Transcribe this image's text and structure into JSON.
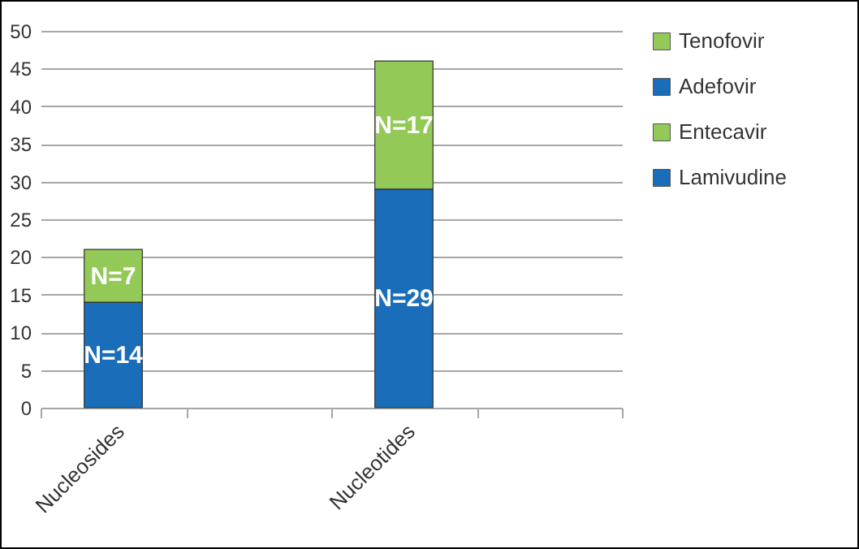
{
  "chart_data": {
    "type": "bar",
    "stacked": true,
    "categories": [
      "Nucleosides",
      null,
      "Nucleotides",
      null
    ],
    "series": [
      {
        "name": "Lamivudine",
        "color": "#1a6db8",
        "values": [
          14,
          null,
          null,
          null
        ],
        "value_labels": [
          "N=14",
          null,
          null,
          null
        ]
      },
      {
        "name": "Entecavir",
        "color": "#92c957",
        "values": [
          7,
          null,
          null,
          null
        ],
        "value_labels": [
          "N=7",
          null,
          null,
          null
        ]
      },
      {
        "name": "Adefovir",
        "color": "#1a6db8",
        "values": [
          null,
          null,
          29,
          null
        ],
        "value_labels": [
          null,
          null,
          "N=29",
          null
        ]
      },
      {
        "name": "Tenofovir",
        "color": "#92c957",
        "values": [
          null,
          null,
          17,
          null
        ],
        "value_labels": [
          null,
          null,
          "N=17",
          null
        ]
      }
    ],
    "ylim": [
      0,
      50
    ],
    "yticks": [
      0,
      5,
      10,
      15,
      20,
      25,
      30,
      35,
      40,
      45,
      50
    ],
    "grid": "y",
    "legend": "right"
  }
}
